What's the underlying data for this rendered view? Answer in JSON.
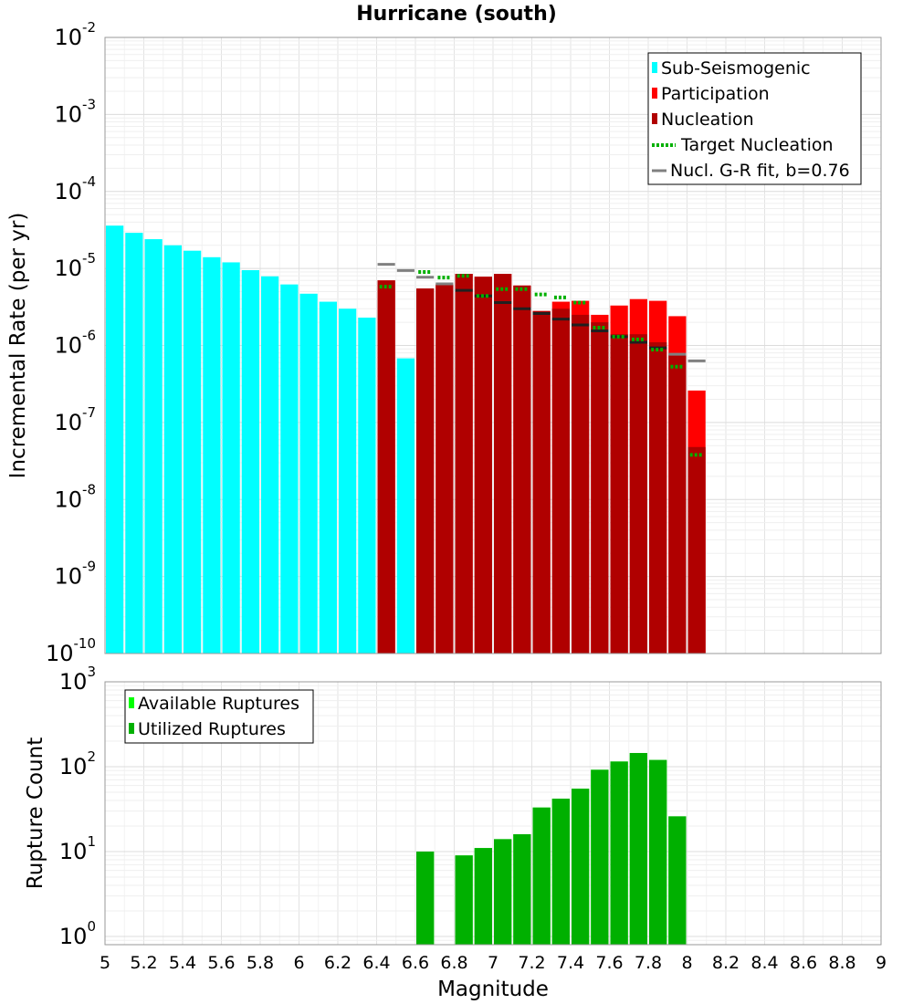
{
  "chart_data": [
    {
      "type": "bar",
      "title": "Hurricane (south)",
      "xlabel": "",
      "ylabel": "Incremental Rate (per yr)",
      "yscale": "log",
      "ylim": [
        1e-10,
        0.01
      ],
      "xlim": [
        5,
        9
      ],
      "grid": true,
      "legend_position": "top-right",
      "colors": {
        "sub_seismogenic": "#00ffff",
        "participation": "#ff0000",
        "nucleation": "#b00000",
        "target": "#00b000",
        "gr_fit": "#808080",
        "gr_fit_overlap": "#202020"
      },
      "legend": [
        {
          "label": "Sub-Seismogenic",
          "kind": "box",
          "color": "#00ffff"
        },
        {
          "label": "Participation",
          "kind": "box",
          "color": "#ff0000"
        },
        {
          "label": "Nucleation",
          "kind": "box",
          "color": "#b00000"
        },
        {
          "label": "Target Nucleation",
          "kind": "dotted",
          "color": "#00b000"
        },
        {
          "label": "Nucl. G-R fit, b=0.76",
          "kind": "line",
          "color": "#808080"
        }
      ],
      "decade_labels": [
        {
          "value": 0.01,
          "base": "10",
          "exp": "-2"
        },
        {
          "value": 0.001,
          "base": "10",
          "exp": "-3"
        },
        {
          "value": 0.0001,
          "base": "10",
          "exp": "-4"
        },
        {
          "value": 1e-05,
          "base": "10",
          "exp": "-5"
        },
        {
          "value": 1e-06,
          "base": "10",
          "exp": "-6"
        },
        {
          "value": 1e-07,
          "base": "10",
          "exp": "-7"
        },
        {
          "value": 1e-08,
          "base": "10",
          "exp": "-8"
        },
        {
          "value": 1e-09,
          "base": "10",
          "exp": "-9"
        },
        {
          "value": 1e-10,
          "base": "10",
          "exp": "-10"
        }
      ],
      "series": [
        {
          "name": "Sub-Seismogenic",
          "x": [
            5.05,
            5.15,
            5.25,
            5.35,
            5.45,
            5.55,
            5.65,
            5.75,
            5.85,
            5.95,
            6.05,
            6.15,
            6.25,
            6.35,
            6.55
          ],
          "values": [
            3.6e-05,
            2.9e-05,
            2.4e-05,
            2e-05,
            1.7e-05,
            1.4e-05,
            1.2e-05,
            9.5e-06,
            7.9e-06,
            6.2e-06,
            4.7e-06,
            3.7e-06,
            3e-06,
            2.3e-06,
            6.8e-07
          ]
        },
        {
          "name": "Participation",
          "x": [
            6.45,
            6.65,
            6.75,
            6.85,
            6.95,
            7.05,
            7.15,
            7.25,
            7.35,
            7.45,
            7.55,
            7.65,
            7.75,
            7.85,
            7.95,
            8.05
          ],
          "values": [
            7e-06,
            5.5e-06,
            6.2e-06,
            8.5e-06,
            7.8e-06,
            8.5e-06,
            6e-06,
            2.8e-06,
            3.7e-06,
            3.8e-06,
            2.5e-06,
            3.3e-06,
            4e-06,
            3.8e-06,
            2.4e-06,
            2.6e-07
          ]
        },
        {
          "name": "Nucleation",
          "x": [
            6.45,
            6.65,
            6.75,
            6.85,
            6.95,
            7.05,
            7.15,
            7.25,
            7.35,
            7.45,
            7.55,
            7.65,
            7.75,
            7.85,
            7.95,
            8.05
          ],
          "values": [
            7e-06,
            5.5e-06,
            6.2e-06,
            8.5e-06,
            7.8e-06,
            8.5e-06,
            6e-06,
            2.8e-06,
            3e-06,
            2.5e-06,
            2e-06,
            1.4e-06,
            1.4e-06,
            1.1e-06,
            7.5e-07,
            4.8e-08
          ]
        },
        {
          "name": "Target Nucleation",
          "x": [
            6.45,
            6.55,
            6.65,
            6.75,
            6.85,
            6.95,
            7.05,
            7.15,
            7.25,
            7.35,
            7.45,
            7.55,
            7.65,
            7.75,
            7.85,
            7.95,
            8.05
          ],
          "values": [
            5.8e-06,
            null,
            9e-06,
            7.6e-06,
            8e-06,
            4.4e-06,
            5.4e-06,
            5.4e-06,
            4.6e-06,
            4.2e-06,
            3.6e-06,
            1.7e-06,
            1.3e-06,
            1.2e-06,
            8.8e-07,
            5.3e-07,
            3.8e-08
          ]
        },
        {
          "name": "Nucl. G-R fit, b=0.76",
          "x": [
            6.45,
            6.55,
            6.65,
            6.75,
            6.85,
            6.95,
            7.05,
            7.15,
            7.25,
            7.35,
            7.45,
            7.55,
            7.65,
            7.75,
            7.85,
            7.95,
            8.05
          ],
          "values": [
            1.13e-05,
            9.4e-06,
            7.7e-06,
            6.3e-06,
            5.2e-06,
            4.4e-06,
            3.6e-06,
            3e-06,
            2.6e-06,
            2.2e-06,
            1.85e-06,
            1.55e-06,
            1.3e-06,
            1.1e-06,
            9.3e-07,
            7.7e-07,
            6.3e-07
          ]
        }
      ]
    },
    {
      "type": "bar",
      "title": "",
      "xlabel": "Magnitude",
      "ylabel": "Rupture Count",
      "yscale": "log",
      "ylim": [
        0.8,
        1000
      ],
      "xlim": [
        5,
        9
      ],
      "grid": true,
      "legend_position": "top-left",
      "colors": {
        "available": "#00ff00",
        "utilized": "#00b000"
      },
      "legend": [
        {
          "label": "Available Ruptures",
          "kind": "box",
          "color": "#00ff00"
        },
        {
          "label": "Utilized Ruptures",
          "kind": "box",
          "color": "#00b000"
        }
      ],
      "decade_labels": [
        {
          "value": 1000,
          "base": "10",
          "exp": "3"
        },
        {
          "value": 100,
          "base": "10",
          "exp": "2"
        },
        {
          "value": 10,
          "base": "10",
          "exp": "1"
        },
        {
          "value": 1,
          "base": "10",
          "exp": "0"
        }
      ],
      "x_tick_labels": [
        "5",
        "5.2",
        "5.4",
        "5.6",
        "5.8",
        "6",
        "6.2",
        "6.4",
        "6.6",
        "6.8",
        "7",
        "7.2",
        "7.4",
        "7.6",
        "7.8",
        "8",
        "8.2",
        "8.4",
        "8.6",
        "8.8",
        "9"
      ],
      "series": [
        {
          "name": "Available Ruptures",
          "x": [
            6.65,
            6.85,
            6.95,
            7.05,
            7.15,
            7.25,
            7.35,
            7.45,
            7.55,
            7.65,
            7.75,
            7.85,
            7.95
          ],
          "values": [
            10,
            9,
            11,
            14,
            16,
            33,
            42,
            55,
            92,
            115,
            145,
            120,
            26
          ]
        },
        {
          "name": "Utilized Ruptures",
          "x": [
            6.65,
            6.85,
            6.95,
            7.05,
            7.15,
            7.25,
            7.35,
            7.45,
            7.55,
            7.65,
            7.75,
            7.85,
            7.95
          ],
          "values": [
            10,
            9,
            11,
            14,
            16,
            33,
            42,
            55,
            92,
            115,
            145,
            120,
            26
          ]
        }
      ]
    }
  ]
}
